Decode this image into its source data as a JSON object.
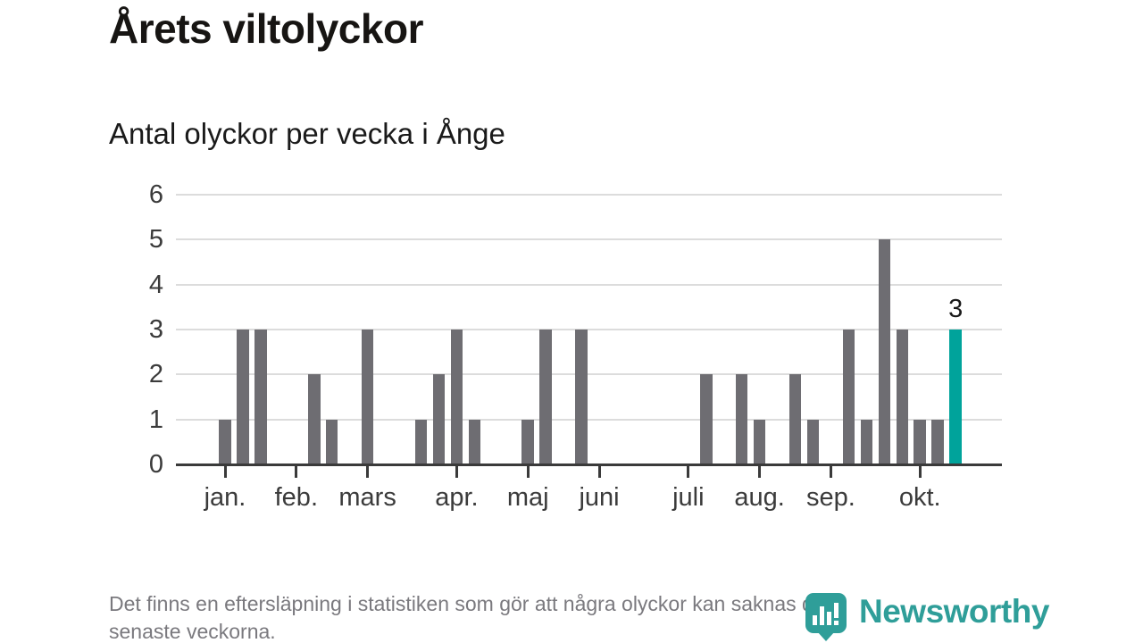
{
  "page": {
    "title": "Årets viltolyckor",
    "subtitle": "Antal olyckor per vecka i Ånge"
  },
  "footnote": {
    "lines": [
      "Det finns en eftersläpning i statistiken som gör att några olyckor kan saknas de",
      "senaste veckorna."
    ]
  },
  "logo": {
    "text": "Newsworthy",
    "icon": "newsworthy-pin-barchart-icon"
  },
  "colors": {
    "bar": "#6e6d72",
    "highlight": "#00a39b",
    "grid": "#dcdcdc",
    "axis": "#3a3a3a",
    "axis_text": "#3b3b3b",
    "title_text": "#171513",
    "muted_text": "#7a797e",
    "logo_teal": "#2f9e99",
    "background": "#ffffff"
  },
  "chart_data": {
    "type": "bar",
    "title": "Årets viltolyckor",
    "subtitle": "Antal olyckor per vecka i Ånge",
    "x_unit": "vecka (week of year)",
    "ylabel": "Antal olyckor",
    "ylim": [
      0,
      6
    ],
    "y_ticks": [
      0,
      1,
      2,
      3,
      4,
      5,
      6
    ],
    "grid": true,
    "legend": false,
    "weeks": [
      1,
      3,
      3,
      0,
      0,
      2,
      1,
      0,
      3,
      0,
      0,
      1,
      2,
      3,
      1,
      0,
      0,
      1,
      3,
      0,
      3,
      0,
      0,
      0,
      0,
      0,
      0,
      2,
      0,
      2,
      1,
      0,
      2,
      1,
      0,
      3,
      1,
      5,
      3,
      1,
      1,
      3
    ],
    "highlight_index": 41,
    "highlight_value": 3,
    "highlight_label": "3",
    "month_ticks": [
      {
        "label": "jan.",
        "week": 0
      },
      {
        "label": "feb.",
        "week": 4
      },
      {
        "label": "mars",
        "week": 8
      },
      {
        "label": "apr.",
        "week": 13
      },
      {
        "label": "maj",
        "week": 17
      },
      {
        "label": "juni",
        "week": 21
      },
      {
        "label": "juli",
        "week": 26
      },
      {
        "label": "aug.",
        "week": 30
      },
      {
        "label": "sep.",
        "week": 34
      },
      {
        "label": "okt.",
        "week": 39
      }
    ]
  }
}
